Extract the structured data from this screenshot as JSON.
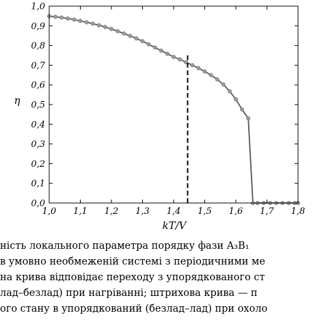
{
  "chart_data": {
    "type": "line",
    "xlabel": "kT/V",
    "ylabel": "η",
    "xlim": [
      1.0,
      1.8
    ],
    "ylim": [
      0.0,
      1.0
    ],
    "xticks": [
      "1,0",
      "1,1",
      "1,2",
      "1,3",
      "1,4",
      "1,5",
      "1,6",
      "1,7",
      "1,8"
    ],
    "yticks": [
      "0,0",
      "0,1",
      "0,2",
      "0,3",
      "0,4",
      "0,5",
      "0,6",
      "0,7",
      "0,8",
      "0,9",
      "1,0"
    ],
    "grid": false,
    "series": [
      {
        "style": "solid-with-markers",
        "color": "#555555",
        "marker_color": "#9a9a9a",
        "points": [
          [
            1.0,
            0.949
          ],
          [
            1.02,
            0.946
          ],
          [
            1.04,
            0.942
          ],
          [
            1.06,
            0.937
          ],
          [
            1.08,
            0.932
          ],
          [
            1.1,
            0.925
          ],
          [
            1.12,
            0.918
          ],
          [
            1.14,
            0.911
          ],
          [
            1.16,
            0.903
          ],
          [
            1.18,
            0.894
          ],
          [
            1.2,
            0.884
          ],
          [
            1.22,
            0.873
          ],
          [
            1.24,
            0.861
          ],
          [
            1.26,
            0.849
          ],
          [
            1.28,
            0.836
          ],
          [
            1.3,
            0.822
          ],
          [
            1.32,
            0.806
          ],
          [
            1.34,
            0.79
          ],
          [
            1.36,
            0.774
          ],
          [
            1.38,
            0.758
          ],
          [
            1.4,
            0.742
          ],
          [
            1.42,
            0.73
          ],
          [
            1.44,
            0.715
          ],
          [
            1.46,
            0.7
          ],
          [
            1.48,
            0.685
          ],
          [
            1.5,
            0.668
          ],
          [
            1.52,
            0.65
          ],
          [
            1.54,
            0.628
          ],
          [
            1.56,
            0.602
          ],
          [
            1.58,
            0.568
          ],
          [
            1.6,
            0.527
          ],
          [
            1.62,
            0.475
          ],
          [
            1.64,
            0.43
          ],
          [
            1.655,
            0.0
          ],
          [
            1.67,
            0.0
          ],
          [
            1.69,
            0.0
          ],
          [
            1.71,
            0.0
          ],
          [
            1.73,
            0.0
          ],
          [
            1.75,
            0.0
          ],
          [
            1.77,
            0.0
          ],
          [
            1.79,
            0.0
          ],
          [
            1.8,
            0.0
          ]
        ]
      },
      {
        "style": "dashed",
        "color": "#000000",
        "points": [
          [
            1.445,
            0.75
          ],
          [
            1.445,
            0.0
          ]
        ]
      }
    ]
  },
  "caption": {
    "line1": "ність локального параметра порядку фази A₃B₁",
    "line2": "в умовно необмеженій системі з періодичними ме",
    "line3": "на крива відповідає переходу з упорядкованого ст",
    "line4": "лад–безлад) при нагріванні; штрихова крива — п",
    "line5": "ого стану в упорядкований (безлад–лад) при охоло"
  }
}
